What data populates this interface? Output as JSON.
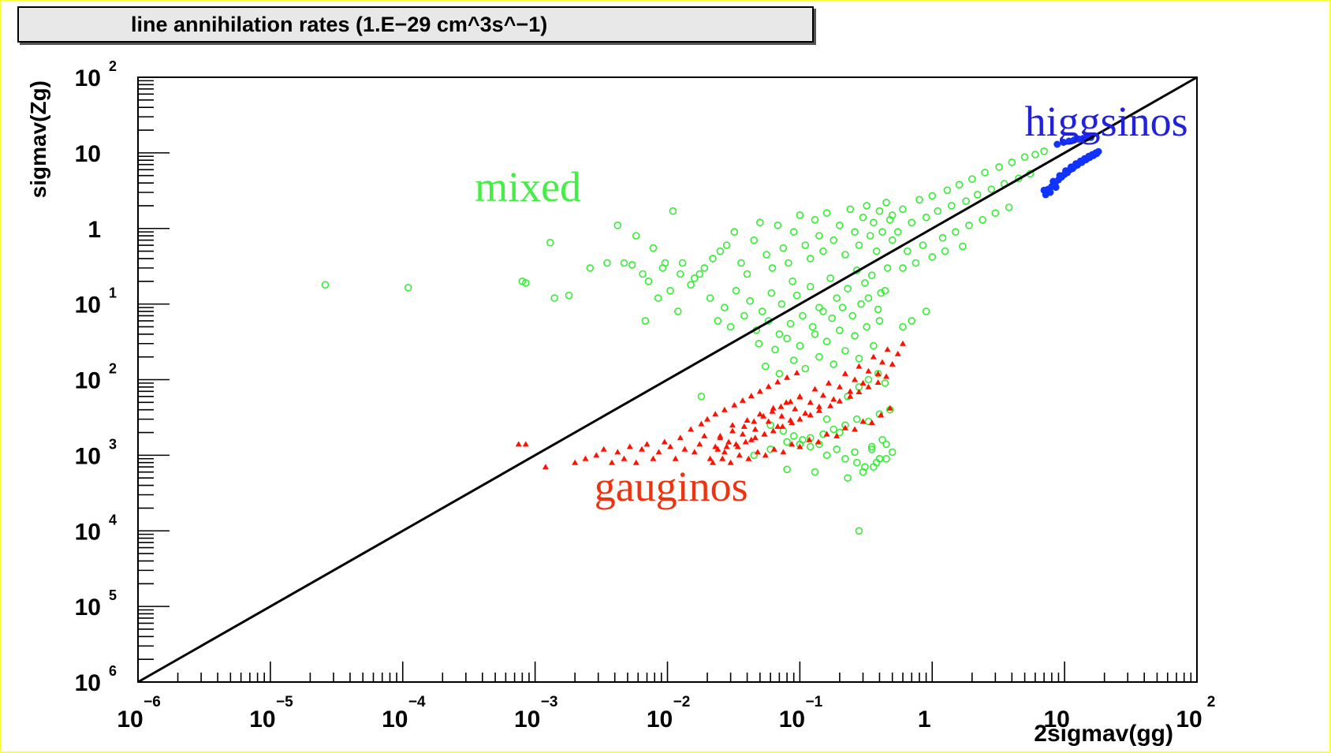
{
  "chart_data": {
    "type": "scatter",
    "title": "line annihilation rates (1.E−29 cm^3s^−1)",
    "xlabel": "2sigmav(gg)",
    "ylabel": "sigmav(Zg)",
    "xscale": "log",
    "yscale": "log",
    "xlim": [
      1e-06,
      100
    ],
    "ylim": [
      1e-06,
      100
    ],
    "x_ticks": [
      {
        "value": 1e-06,
        "base": "10",
        "exp": "−6"
      },
      {
        "value": 1e-05,
        "base": "10",
        "exp": "−5"
      },
      {
        "value": 0.0001,
        "base": "10",
        "exp": "−4"
      },
      {
        "value": 0.001,
        "base": "10",
        "exp": "−3"
      },
      {
        "value": 0.01,
        "base": "10",
        "exp": "−2"
      },
      {
        "value": 0.1,
        "base": "10",
        "exp": "−1"
      },
      {
        "value": 1,
        "base": "1",
        "exp": ""
      },
      {
        "value": 10,
        "base": "10",
        "exp": ""
      },
      {
        "value": 100,
        "base": "10",
        "exp": "2"
      }
    ],
    "y_ticks": [
      {
        "value": 1e-06,
        "base": "10",
        "exp": "6"
      },
      {
        "value": 1e-05,
        "base": "10",
        "exp": "5"
      },
      {
        "value": 0.0001,
        "base": "10",
        "exp": "4"
      },
      {
        "value": 0.001,
        "base": "10",
        "exp": "3"
      },
      {
        "value": 0.01,
        "base": "10",
        "exp": "2"
      },
      {
        "value": 0.1,
        "base": "10",
        "exp": "1"
      },
      {
        "value": 1,
        "base": "1",
        "exp": ""
      },
      {
        "value": 10,
        "base": "10",
        "exp": ""
      },
      {
        "value": 100,
        "base": "10",
        "exp": "2"
      }
    ],
    "reference_line": {
      "name": "",
      "color": "#000000",
      "x": [
        1e-06,
        100
      ],
      "y": [
        1e-06,
        100
      ]
    },
    "annotations": [
      {
        "text": "higgsinos",
        "x": 5,
        "y": 17,
        "color": "#2222dd"
      },
      {
        "text": "mixed",
        "x": 0.00035,
        "y": 2.3,
        "color": "#44ee44"
      },
      {
        "text": "gauginos",
        "x": 0.0028,
        "y": 0.00025,
        "color": "#ee3311"
      }
    ],
    "series": [
      {
        "name": "",
        "marker": "open-circle",
        "color": "#33ee33",
        "x": [
          2.6e-05,
          0.00011,
          0.0008,
          0.00085,
          0.0014,
          0.0018,
          0.0013,
          0.0026,
          0.0035,
          0.0042,
          0.0047,
          0.0054,
          0.0058,
          0.0065,
          0.0072,
          0.0068,
          0.0078,
          0.0092,
          0.0096,
          0.011,
          0.0125,
          0.013,
          0.0085,
          0.0105,
          0.012,
          0.015,
          0.016,
          0.0175,
          0.019,
          0.022,
          0.025,
          0.028,
          0.032,
          0.036,
          0.04,
          0.045,
          0.05,
          0.056,
          0.062,
          0.068,
          0.075,
          0.082,
          0.09,
          0.1,
          0.11,
          0.12,
          0.13,
          0.14,
          0.15,
          0.16,
          0.18,
          0.2,
          0.22,
          0.24,
          0.26,
          0.28,
          0.3,
          0.32,
          0.34,
          0.36,
          0.38,
          0.4,
          0.42,
          0.45,
          0.48,
          0.5,
          0.021,
          0.027,
          0.033,
          0.042,
          0.052,
          0.061,
          0.073,
          0.088,
          0.095,
          0.12,
          0.14,
          0.17,
          0.19,
          0.23,
          0.27,
          0.31,
          0.35,
          0.41,
          0.46,
          0.024,
          0.03,
          0.038,
          0.047,
          0.058,
          0.07,
          0.085,
          0.105,
          0.125,
          0.15,
          0.175,
          0.21,
          0.25,
          0.29,
          0.33,
          0.39,
          0.44,
          0.049,
          0.065,
          0.08,
          0.1,
          0.13,
          0.16,
          0.2,
          0.26,
          0.32,
          0.4,
          0.055,
          0.07,
          0.09,
          0.11,
          0.14,
          0.18,
          0.22,
          0.28,
          0.36,
          0.5,
          0.6,
          0.8,
          1.0,
          1.3,
          1.6,
          2.0,
          2.5,
          3.2,
          4.0,
          5.0,
          6.0,
          7.0,
          0.55,
          0.7,
          0.9,
          1.1,
          1.4,
          1.8,
          2.2,
          2.8,
          3.5,
          4.5,
          5.5,
          0.65,
          0.85,
          1.2,
          1.5,
          1.9,
          2.4,
          3.0,
          3.8,
          0.6,
          0.75,
          1.0,
          1.25,
          1.7,
          0.045,
          0.06,
          0.08,
          0.1,
          0.12,
          0.15,
          0.18,
          0.22,
          0.27,
          0.33,
          0.4,
          0.48,
          0.35,
          0.42,
          0.5,
          0.38,
          0.45,
          0.3,
          0.26,
          0.22,
          0.19,
          0.16,
          0.14,
          0.12,
          0.105,
          0.09,
          0.075,
          0.06,
          0.23,
          0.28,
          0.33,
          0.39,
          0.44,
          0.6,
          0.7,
          0.9,
          0.23,
          0.31,
          0.4,
          0.2,
          0.27,
          0.36,
          0.018,
          0.13,
          0.28,
          0.08,
          0.35,
          0.45,
          0.16
        ],
        "y": [
          0.18,
          0.165,
          0.2,
          0.19,
          0.12,
          0.13,
          0.65,
          0.3,
          0.35,
          1.1,
          0.35,
          0.33,
          0.8,
          0.25,
          0.2,
          0.06,
          0.55,
          0.3,
          0.35,
          1.7,
          0.25,
          0.35,
          0.12,
          0.15,
          0.08,
          0.18,
          0.22,
          0.25,
          0.3,
          0.4,
          0.5,
          0.6,
          0.9,
          0.35,
          0.25,
          0.7,
          1.2,
          0.45,
          0.3,
          1.1,
          0.55,
          0.35,
          0.9,
          1.5,
          0.6,
          0.4,
          1.3,
          0.8,
          0.5,
          1.6,
          0.7,
          1.1,
          0.45,
          1.8,
          0.9,
          0.6,
          1.4,
          2.0,
          0.8,
          1.2,
          0.5,
          1.7,
          0.9,
          2.2,
          1.3,
          0.7,
          0.12,
          0.09,
          0.15,
          0.11,
          0.08,
          0.14,
          0.1,
          0.2,
          0.13,
          0.17,
          0.09,
          0.22,
          0.12,
          0.16,
          0.28,
          0.19,
          0.24,
          0.14,
          0.3,
          0.06,
          0.05,
          0.07,
          0.045,
          0.06,
          0.04,
          0.055,
          0.07,
          0.05,
          0.08,
          0.065,
          0.09,
          0.07,
          0.1,
          0.12,
          0.085,
          0.15,
          0.03,
          0.025,
          0.035,
          0.028,
          0.04,
          0.032,
          0.045,
          0.038,
          0.05,
          0.06,
          0.015,
          0.012,
          0.018,
          0.014,
          0.02,
          0.016,
          0.024,
          0.019,
          0.028,
          1.5,
          1.8,
          2.4,
          2.7,
          3.2,
          3.8,
          4.5,
          5.5,
          6.5,
          7.5,
          8.8,
          9.5,
          10.5,
          0.9,
          1.2,
          1.4,
          1.7,
          2.0,
          2.3,
          2.8,
          3.3,
          3.9,
          4.6,
          5.3,
          0.5,
          0.6,
          0.75,
          0.9,
          1.1,
          1.3,
          1.6,
          1.9,
          0.3,
          0.35,
          0.42,
          0.5,
          0.58,
          0.001,
          0.0012,
          0.0015,
          0.0014,
          0.0017,
          0.0019,
          0.0022,
          0.0025,
          0.003,
          0.0028,
          0.0035,
          0.004,
          0.0013,
          0.0016,
          0.0011,
          0.0008,
          0.0009,
          0.0006,
          0.0011,
          0.0009,
          0.0012,
          0.001,
          0.0014,
          0.0013,
          0.0016,
          0.0018,
          0.0021,
          0.0025,
          0.006,
          0.008,
          0.01,
          0.012,
          0.009,
          0.05,
          0.06,
          0.08,
          0.0005,
          0.0007,
          0.0009,
          0.002,
          0.0008,
          0.0007,
          0.006,
          0.0006,
          0.0001,
          0.00065,
          0.0012,
          0.0014,
          0.003
        ]
      },
      {
        "name": "",
        "marker": "filled-triangle",
        "color": "#ff1100",
        "x": [
          0.00075,
          0.00085,
          0.0012,
          0.002,
          0.0024,
          0.0029,
          0.0033,
          0.0038,
          0.0042,
          0.0047,
          0.0052,
          0.0058,
          0.0064,
          0.007,
          0.0078,
          0.0086,
          0.0095,
          0.0105,
          0.0115,
          0.0125,
          0.0135,
          0.015,
          0.016,
          0.0175,
          0.019,
          0.021,
          0.023,
          0.025,
          0.027,
          0.029,
          0.031,
          0.034,
          0.037,
          0.04,
          0.043,
          0.046,
          0.05,
          0.054,
          0.058,
          0.063,
          0.068,
          0.073,
          0.079,
          0.085,
          0.092,
          0.1,
          0.11,
          0.12,
          0.13,
          0.14,
          0.15,
          0.165,
          0.18,
          0.2,
          0.22,
          0.24,
          0.26,
          0.28,
          0.3,
          0.33,
          0.36,
          0.39,
          0.42,
          0.46,
          0.5,
          0.55,
          0.6,
          0.022,
          0.026,
          0.03,
          0.035,
          0.041,
          0.048,
          0.055,
          0.064,
          0.075,
          0.087,
          0.1,
          0.118,
          0.138,
          0.16,
          0.19,
          0.22,
          0.26,
          0.3,
          0.35,
          0.41,
          0.48,
          0.024,
          0.028,
          0.033,
          0.039,
          0.046,
          0.054,
          0.063,
          0.074,
          0.087,
          0.1,
          0.12,
          0.14,
          0.17,
          0.2,
          0.24,
          0.28,
          0.33,
          0.39,
          0.45,
          0.025,
          0.031,
          0.038,
          0.045,
          0.053,
          0.062,
          0.072,
          0.085,
          0.1,
          0.018,
          0.02,
          0.023,
          0.027,
          0.032,
          0.037,
          0.043,
          0.05,
          0.058,
          0.068,
          0.08,
          0.095
        ],
        "y": [
          0.0014,
          0.0014,
          0.0007,
          0.0008,
          0.0009,
          0.001,
          0.0012,
          0.0008,
          0.0011,
          0.0009,
          0.0013,
          0.0008,
          0.0012,
          0.0014,
          0.0009,
          0.0011,
          0.0015,
          0.0013,
          0.0009,
          0.0017,
          0.0012,
          0.0022,
          0.0011,
          0.0014,
          0.0018,
          0.0009,
          0.0013,
          0.0017,
          0.0011,
          0.0015,
          0.0025,
          0.0013,
          0.0019,
          0.0029,
          0.0016,
          0.0022,
          0.0035,
          0.0019,
          0.0028,
          0.0042,
          0.0024,
          0.0033,
          0.005,
          0.0029,
          0.0041,
          0.006,
          0.0036,
          0.005,
          0.0075,
          0.0044,
          0.0062,
          0.009,
          0.0055,
          0.008,
          0.012,
          0.007,
          0.01,
          0.015,
          0.009,
          0.013,
          0.02,
          0.012,
          0.017,
          0.025,
          0.016,
          0.022,
          0.03,
          0.0008,
          0.0009,
          0.0008,
          0.001,
          0.0009,
          0.0011,
          0.001,
          0.0012,
          0.0011,
          0.0014,
          0.0013,
          0.0016,
          0.0015,
          0.0019,
          0.0018,
          0.0023,
          0.0022,
          0.0028,
          0.0027,
          0.0034,
          0.0042,
          0.0012,
          0.0013,
          0.0014,
          0.0015,
          0.0017,
          0.0019,
          0.0021,
          0.0024,
          0.0027,
          0.003,
          0.0034,
          0.0039,
          0.0045,
          0.0052,
          0.006,
          0.0069,
          0.008,
          0.0092,
          0.011,
          0.0018,
          0.0021,
          0.0024,
          0.0028,
          0.0033,
          0.0038,
          0.0044,
          0.0051,
          0.0059,
          0.0026,
          0.003,
          0.0035,
          0.004,
          0.0046,
          0.0053,
          0.0061,
          0.007,
          0.0081,
          0.0093,
          0.0107,
          0.0123
        ]
      },
      {
        "name": "",
        "marker": "filled-circle",
        "color": "#1133ff",
        "x": [
          7.5,
          8.5,
          9.5,
          10.5,
          11.5,
          12.5,
          13.5,
          14.5,
          15.5,
          16.5,
          17.5,
          8.2,
          9.2,
          10.2,
          11.2,
          12.2,
          13.2,
          14.2,
          15.2,
          16.2,
          17.2,
          18.0,
          8.0,
          9.0,
          10.0,
          11.0,
          12.0,
          13.0,
          14.0,
          15.0,
          16.0,
          17.0,
          8.8,
          9.8,
          10.8,
          11.8,
          12.8,
          13.8,
          14.8,
          15.8,
          7.0,
          7.8,
          8.6,
          7.2,
          8.4
        ],
        "y": [
          3.3,
          4.0,
          4.8,
          5.5,
          6.2,
          6.9,
          7.5,
          8.1,
          8.7,
          9.2,
          9.8,
          4.2,
          5.0,
          5.8,
          6.5,
          7.2,
          7.8,
          8.4,
          9.0,
          9.5,
          10.0,
          10.4,
          3.6,
          4.4,
          5.2,
          6.0,
          6.7,
          7.4,
          8.0,
          8.6,
          9.1,
          9.6,
          13.0,
          13.8,
          14.3,
          14.8,
          15.2,
          15.5,
          15.8,
          16.0,
          3.2,
          3.0,
          3.5,
          2.8,
          3.8
        ]
      }
    ]
  }
}
